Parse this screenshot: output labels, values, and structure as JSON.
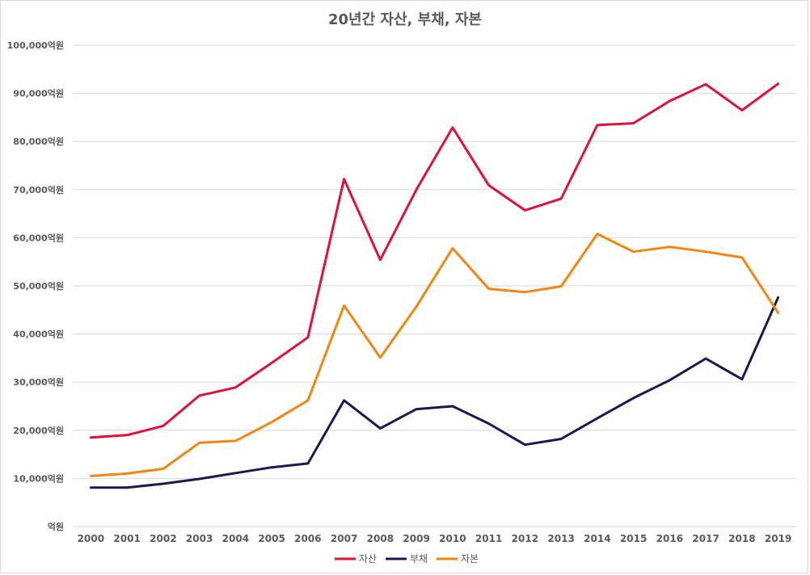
{
  "chart_data": {
    "type": "line",
    "title": "20년간 자산, 부채, 자본",
    "xlabel": "",
    "ylabel": "",
    "ylim": [
      0,
      100000
    ],
    "y_ticks": [
      {
        "value": 0,
        "label": "억원"
      },
      {
        "value": 10000,
        "label": "10,000억원"
      },
      {
        "value": 20000,
        "label": "20,000억원"
      },
      {
        "value": 30000,
        "label": "30,000억원"
      },
      {
        "value": 40000,
        "label": "40,000억원"
      },
      {
        "value": 50000,
        "label": "50,000억원"
      },
      {
        "value": 60000,
        "label": "60,000억원"
      },
      {
        "value": 70000,
        "label": "70,000억원"
      },
      {
        "value": 80000,
        "label": "80,000억원"
      },
      {
        "value": 90000,
        "label": "90,000억원"
      },
      {
        "value": 100000,
        "label": "100,000억원"
      }
    ],
    "categories": [
      "2000",
      "2001",
      "2002",
      "2003",
      "2004",
      "2005",
      "2006",
      "2007",
      "2008",
      "2009",
      "2010",
      "2011",
      "2012",
      "2013",
      "2014",
      "2015",
      "2016",
      "2017",
      "2018",
      "2019"
    ],
    "grid": true,
    "legend_position": "bottom",
    "series": [
      {
        "name": "자산",
        "color": "#e0103a",
        "values": [
          18500,
          19000,
          20900,
          27200,
          28900,
          34000,
          39300,
          72200,
          55400,
          70000,
          82900,
          70900,
          65700,
          68100,
          83400,
          83800,
          88400,
          91900,
          86500,
          92000
        ]
      },
      {
        "name": "부채",
        "color": "#1e1654",
        "values": [
          8100,
          8100,
          8900,
          9900,
          11100,
          12300,
          13100,
          26200,
          20400,
          24400,
          25000,
          21400,
          17000,
          18200,
          22500,
          26700,
          30400,
          34900,
          30600,
          47600
        ]
      },
      {
        "name": "자본",
        "color": "#f5850f",
        "values": [
          10500,
          11000,
          12000,
          17400,
          17800,
          21700,
          26200,
          45900,
          35100,
          45700,
          57800,
          49400,
          48700,
          49900,
          60800,
          57100,
          58100,
          57100,
          55900,
          44400
        ]
      }
    ]
  }
}
